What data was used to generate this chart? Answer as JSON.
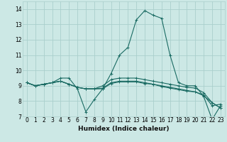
{
  "xlabel": "Humidex (Indice chaleur)",
  "background_color": "#cce8e5",
  "grid_color": "#aacfcc",
  "line_color": "#1a6b63",
  "xlim": [
    -0.5,
    23.5
  ],
  "ylim": [
    7.0,
    14.5
  ],
  "yticks": [
    7,
    8,
    9,
    10,
    11,
    12,
    13,
    14
  ],
  "xticks": [
    0,
    1,
    2,
    3,
    4,
    5,
    6,
    7,
    8,
    9,
    10,
    11,
    12,
    13,
    14,
    15,
    16,
    17,
    18,
    19,
    20,
    21,
    22,
    23
  ],
  "series": [
    [
      9.2,
      9.0,
      9.1,
      9.2,
      9.5,
      9.5,
      8.8,
      7.3,
      8.1,
      8.8,
      9.8,
      11.0,
      11.5,
      13.3,
      13.9,
      13.6,
      13.4,
      11.0,
      9.2,
      9.0,
      9.0,
      8.3,
      6.8,
      7.7
    ],
    [
      9.2,
      9.0,
      9.1,
      9.2,
      9.3,
      9.1,
      8.9,
      8.8,
      8.8,
      8.85,
      9.2,
      9.3,
      9.3,
      9.3,
      9.2,
      9.1,
      9.0,
      8.9,
      8.8,
      8.7,
      8.6,
      8.4,
      7.7,
      7.8
    ],
    [
      9.2,
      9.0,
      9.1,
      9.2,
      9.3,
      9.1,
      8.9,
      8.8,
      8.8,
      8.8,
      9.15,
      9.25,
      9.25,
      9.25,
      9.15,
      9.1,
      8.95,
      8.85,
      8.75,
      8.65,
      8.6,
      8.35,
      7.9,
      7.55
    ],
    [
      9.2,
      9.0,
      9.1,
      9.2,
      9.3,
      9.1,
      8.9,
      8.8,
      8.8,
      9.0,
      9.4,
      9.5,
      9.5,
      9.5,
      9.4,
      9.3,
      9.2,
      9.1,
      9.0,
      8.9,
      8.85,
      8.55,
      7.9,
      7.55
    ]
  ],
  "marker": "+",
  "markersize": 3,
  "linewidth": 0.8,
  "tick_fontsize": 5.5,
  "xlabel_fontsize": 6.5
}
